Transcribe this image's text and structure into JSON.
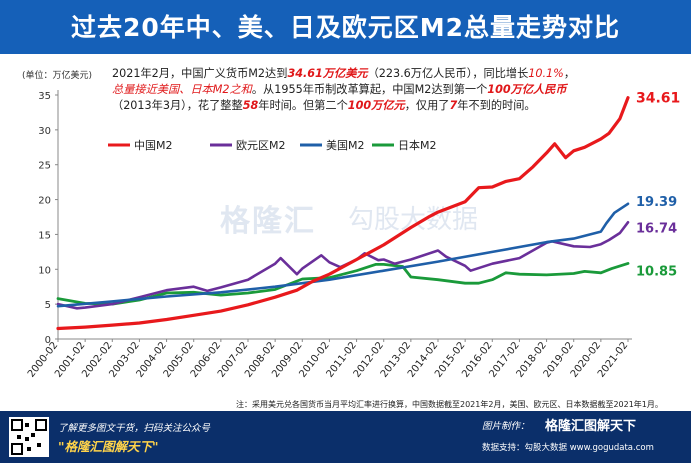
{
  "header": {
    "title": "过去20年中、美、日及欧元区M2总量走势对比"
  },
  "unit_label": "(单位：万亿美元)",
  "note": {
    "l1a": "2021年2月，中国广义货币M2达到",
    "l1b": "34.61万亿美元",
    "l1c": "（223.6万亿人民币），同比增长",
    "l1d": "10.1%",
    "l1e": "，",
    "l2a": "总量接近美国、日本M2之和",
    "l2b": "。从1955年币制改革算起，中国M2达到第一个",
    "l2c": "100万亿人民币",
    "l3a": "（2013年3月），花了整整",
    "l3b": "58",
    "l3c": "年时间。但第二个",
    "l3d": "100万亿元",
    "l3e": "，仅用了",
    "l3f": "7",
    "l3g": "年不到的时间。"
  },
  "watermark": {
    "brand": "格隆汇",
    "brand2": "勾股大数据"
  },
  "source_note": "注：采用美元兑各国货币当月平均汇率进行换算，中国数据截至2021年2月，美国、欧元区、日本数据截至2021年1月。",
  "footer": {
    "line1": "了解更多图文干货，扫码关注公众号",
    "line2": "\"格隆汇图解天下\"",
    "maker_label": "图片制作：",
    "maker": "格隆汇图解天下",
    "data_support": "数据支持：勾股大数据 www.gogudata.com"
  },
  "colors": {
    "china": "#e8191c",
    "euro": "#6a2f9a",
    "us": "#1f5fa8",
    "japan": "#1a9a3a",
    "header": "#1560b8"
  },
  "chart_data": {
    "type": "line",
    "ylim": [
      0,
      35
    ],
    "yticks": [
      0,
      5,
      10,
      15,
      20,
      25,
      30,
      35
    ],
    "xticks": [
      "2000-02",
      "2001-02",
      "2002-02",
      "2003-02",
      "2004-02",
      "2005-02",
      "2006-02",
      "2007-02",
      "2008-02",
      "2009-02",
      "2010-02",
      "2011-02",
      "2012-02",
      "2013-02",
      "2014-02",
      "2015-02",
      "2016-02",
      "2017-02",
      "2018-02",
      "2019-02",
      "2020-02",
      "2021-02"
    ],
    "legend": [
      "中国M2",
      "欧元区M2",
      "美国M2",
      "日本M2"
    ],
    "end_labels": {
      "china": "34.61",
      "us": "19.39",
      "euro": "16.74",
      "japan": "10.85"
    },
    "series": [
      {
        "name": "中国M2",
        "key": "china",
        "x": [
          2000.1,
          2001.1,
          2002.1,
          2003.1,
          2004.1,
          2005.1,
          2006.1,
          2007.1,
          2008.1,
          2008.9,
          2009.5,
          2010.1,
          2011.1,
          2012.1,
          2013.1,
          2013.8,
          2014.1,
          2015.1,
          2015.6,
          2016.1,
          2016.6,
          2017.1,
          2017.6,
          2018.1,
          2018.4,
          2018.8,
          2019.1,
          2019.5,
          2020.1,
          2020.4,
          2020.8,
          2021.1
        ],
        "values": [
          1.5,
          1.7,
          2.0,
          2.3,
          2.8,
          3.4,
          4.0,
          4.9,
          6.0,
          7.0,
          8.3,
          9.3,
          11.4,
          13.5,
          16.0,
          17.6,
          18.2,
          19.7,
          21.7,
          21.8,
          22.6,
          23.0,
          24.7,
          26.7,
          28.0,
          26.0,
          27.0,
          27.5,
          28.7,
          29.5,
          31.6,
          34.61
        ]
      },
      {
        "name": "欧元区M2",
        "key": "euro",
        "x": [
          2000.1,
          2000.8,
          2001.1,
          2002.1,
          2003.1,
          2004.1,
          2005.1,
          2005.6,
          2006.1,
          2007.1,
          2008.1,
          2008.3,
          2008.9,
          2009.1,
          2009.8,
          2010.1,
          2010.5,
          2011.1,
          2011.4,
          2011.9,
          2012.1,
          2012.5,
          2013.1,
          2014.1,
          2014.4,
          2015.1,
          2015.3,
          2016.1,
          2017.1,
          2018.1,
          2018.3,
          2019.1,
          2019.7,
          2020.1,
          2020.4,
          2020.8,
          2021.1
        ],
        "values": [
          5.0,
          4.4,
          4.5,
          5.0,
          6.0,
          7.0,
          7.5,
          6.9,
          7.4,
          8.5,
          10.8,
          11.6,
          9.3,
          10.1,
          12.0,
          11.0,
          10.3,
          11.4,
          12.3,
          11.3,
          11.4,
          10.8,
          11.4,
          12.7,
          11.8,
          10.5,
          9.8,
          10.8,
          11.6,
          13.8,
          14.0,
          13.3,
          13.2,
          13.6,
          14.2,
          15.2,
          16.74
        ]
      },
      {
        "name": "美国M2",
        "key": "us",
        "x": [
          2000.1,
          2002.1,
          2004.1,
          2006.1,
          2008.1,
          2010.1,
          2012.1,
          2014.1,
          2016.1,
          2018.1,
          2019.1,
          2020.1,
          2020.3,
          2020.6,
          2021.1
        ],
        "values": [
          4.7,
          5.4,
          6.1,
          6.7,
          7.5,
          8.5,
          9.8,
          11.1,
          12.5,
          13.9,
          14.4,
          15.4,
          16.6,
          18.1,
          19.39
        ]
      },
      {
        "name": "日本M2",
        "key": "japan",
        "x": [
          2000.1,
          2001.1,
          2002.1,
          2003.1,
          2004.1,
          2005.1,
          2006.1,
          2007.1,
          2008.1,
          2009.1,
          2010.1,
          2011.1,
          2011.8,
          2012.1,
          2012.8,
          2013.1,
          2014.1,
          2015.1,
          2015.6,
          2016.1,
          2016.6,
          2017.1,
          2018.1,
          2019.1,
          2019.5,
          2020.1,
          2020.5,
          2021.1
        ],
        "values": [
          5.8,
          5.1,
          5.0,
          5.6,
          6.6,
          6.7,
          6.3,
          6.6,
          7.1,
          8.6,
          8.8,
          9.8,
          10.7,
          10.7,
          10.4,
          8.9,
          8.5,
          8.0,
          8.0,
          8.5,
          9.5,
          9.3,
          9.2,
          9.4,
          9.7,
          9.5,
          10.1,
          10.85
        ]
      }
    ]
  }
}
